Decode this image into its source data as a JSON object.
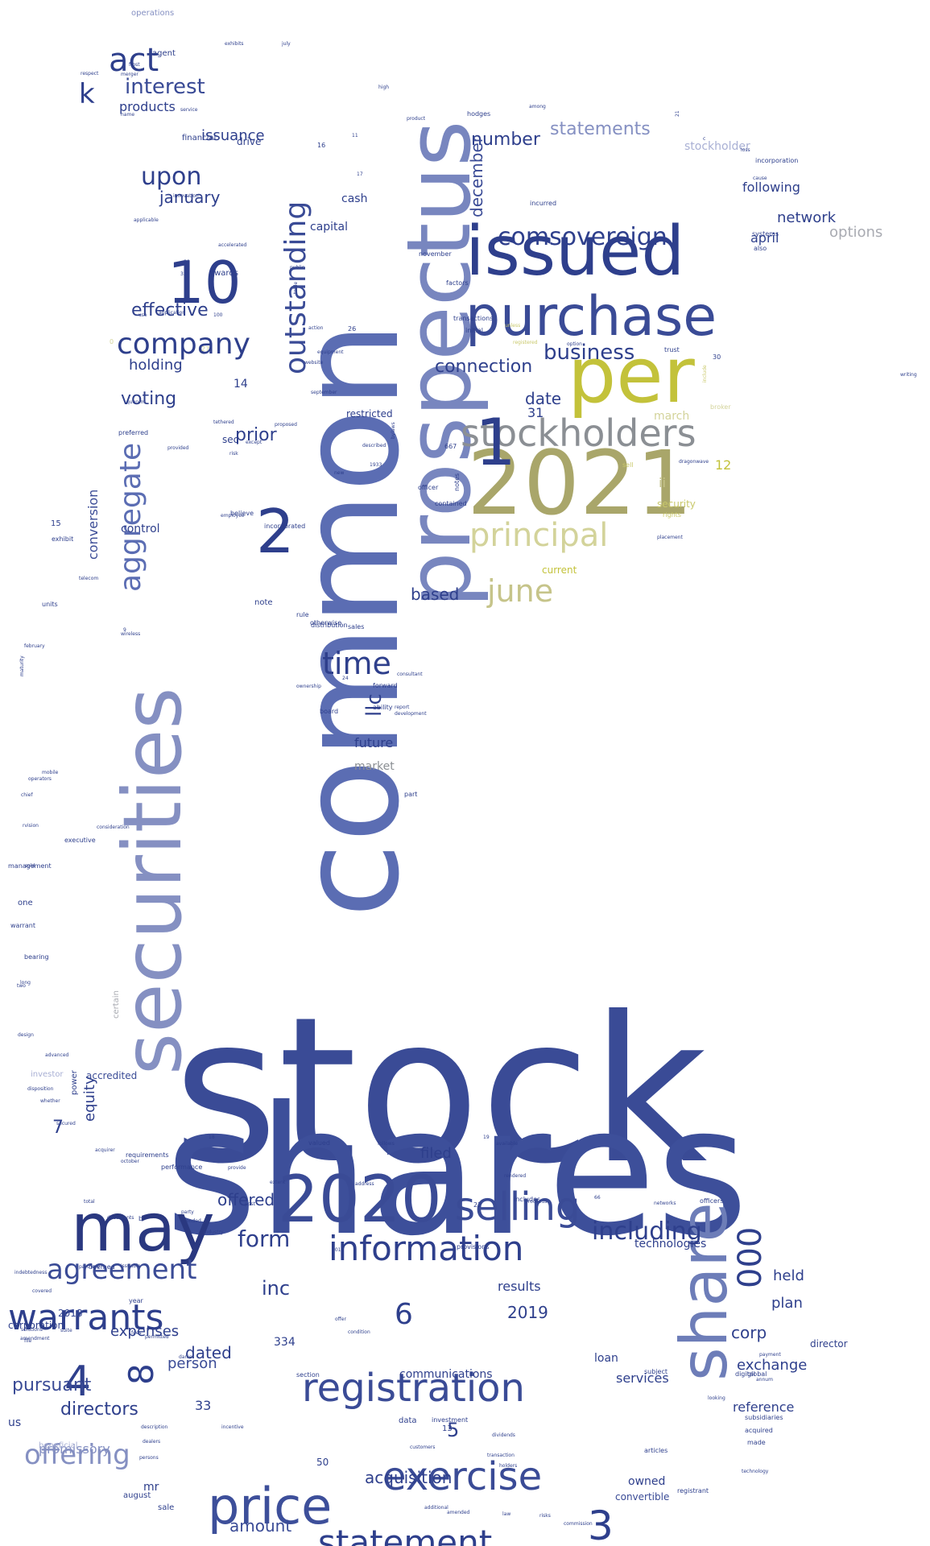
{
  "words": [
    {
      "text": "stock",
      "color": "#3a4b96"
    },
    {
      "text": "shares",
      "color": "#3d4f9a"
    },
    {
      "text": "common",
      "color": "#5b6db3"
    },
    {
      "text": "prospectus",
      "color": "#7886bf"
    },
    {
      "text": "securities",
      "color": "#8590c2"
    },
    {
      "text": "2021",
      "color": "#a9a66a"
    },
    {
      "text": "per",
      "color": "#c3c23a"
    },
    {
      "text": "issued",
      "color": "#2e3f8c"
    },
    {
      "text": "purchase",
      "color": "#3a4b96"
    },
    {
      "text": "stockholders",
      "color": "#8b8f94"
    },
    {
      "text": "principal",
      "color": "#d3d39a"
    },
    {
      "text": "june",
      "color": "#c6c48a"
    },
    {
      "text": "1",
      "color": "#2e3f8c"
    },
    {
      "text": "2",
      "color": "#2e3f8c"
    },
    {
      "text": "10",
      "color": "#2e3f8c"
    },
    {
      "text": "may",
      "color": "#2a3880"
    },
    {
      "text": "2020",
      "color": "#3a4b96"
    },
    {
      "text": "share",
      "color": "#6d7db8"
    },
    {
      "text": "price",
      "color": "#3d4f9a"
    },
    {
      "text": "registration",
      "color": "#3a4b96"
    },
    {
      "text": "exercise",
      "color": "#3a4b96"
    },
    {
      "text": "statement",
      "color": "#2e3f8c"
    },
    {
      "text": "warrants",
      "color": "#2e3f8c"
    },
    {
      "text": "selling",
      "color": "#3a4b96"
    },
    {
      "text": "information",
      "color": "#2e3f8c"
    },
    {
      "text": "agreement",
      "color": "#3a4b96"
    },
    {
      "text": "offering",
      "color": "#8590c2"
    },
    {
      "text": "outstanding",
      "color": "#3a4b96"
    },
    {
      "text": "aggregate",
      "color": "#5b6db3"
    },
    {
      "text": "company",
      "color": "#2e3f8c"
    },
    {
      "text": "comsovereign",
      "color": "#2e3f8c"
    },
    {
      "text": "time",
      "color": "#2e3f8c"
    },
    {
      "text": "upon",
      "color": "#2e3f8c"
    },
    {
      "text": "act",
      "color": "#2e3f8c"
    },
    {
      "text": "interest",
      "color": "#3a4b96"
    },
    {
      "text": "k",
      "color": "#2e3f8c"
    },
    {
      "text": "business",
      "color": "#2e3f8c"
    },
    {
      "text": "connection",
      "color": "#2e3f8c"
    },
    {
      "text": "number",
      "color": "#2e3f8c"
    },
    {
      "text": "statements",
      "color": "#8590c2"
    },
    {
      "text": "december",
      "color": "#3a4b96"
    },
    {
      "text": "effective",
      "color": "#2e3f8c"
    },
    {
      "text": "holding",
      "color": "#2e3f8c"
    },
    {
      "text": "voting",
      "color": "#2e3f8c"
    },
    {
      "text": "january",
      "color": "#2e3f8c"
    },
    {
      "text": "issuance",
      "color": "#2e3f8c"
    },
    {
      "text": "prior",
      "color": "#2e3f8c"
    },
    {
      "text": "date",
      "color": "#2e3f8c"
    },
    {
      "text": "31",
      "color": "#2e3f8c"
    },
    {
      "text": "llc",
      "color": "#2e3f8c"
    },
    {
      "text": "future",
      "color": "#2e3f8c"
    },
    {
      "text": "market",
      "color": "#8b8f94"
    },
    {
      "text": "based",
      "color": "#2e3f8c"
    },
    {
      "text": "conversion",
      "color": "#3a4b96"
    },
    {
      "text": "products",
      "color": "#2e3f8c"
    },
    {
      "text": "following",
      "color": "#2e3f8c"
    },
    {
      "text": "network",
      "color": "#2e3f8c"
    },
    {
      "text": "april",
      "color": "#2e3f8c"
    },
    {
      "text": "options",
      "color": "#a9abb2"
    },
    {
      "text": "stockholder",
      "color": "#a9b0d4"
    },
    {
      "text": "ii",
      "color": "#c6c48a"
    },
    {
      "text": "security",
      "color": "#c9c86a"
    },
    {
      "text": "12",
      "color": "#c3c23a"
    },
    {
      "text": "march",
      "color": "#d3d39a"
    },
    {
      "text": "current",
      "color": "#c3c23a"
    },
    {
      "text": "including",
      "color": "#2e3f8c"
    },
    {
      "text": "form",
      "color": "#2e3f8c"
    },
    {
      "text": "offered",
      "color": "#2e3f8c"
    },
    {
      "text": "filed",
      "color": "#2e3f8c"
    },
    {
      "text": "inc",
      "color": "#2e3f8c"
    },
    {
      "text": "6",
      "color": "#2e3f8c"
    },
    {
      "text": "4",
      "color": "#2e3f8c"
    },
    {
      "text": "8",
      "color": "#2e3f8c"
    },
    {
      "text": "3",
      "color": "#2e3f8c"
    },
    {
      "text": "5",
      "color": "#2e3f8c"
    },
    {
      "text": "7",
      "color": "#2e3f8c"
    },
    {
      "text": "000",
      "color": "#2e3f8c"
    },
    {
      "text": "held",
      "color": "#2e3f8c"
    },
    {
      "text": "plan",
      "color": "#2e3f8c"
    },
    {
      "text": "corp",
      "color": "#2e3f8c"
    },
    {
      "text": "exchange",
      "color": "#2e3f8c"
    },
    {
      "text": "reference",
      "color": "#2e3f8c"
    },
    {
      "text": "person",
      "color": "#3a4b96"
    },
    {
      "text": "dated",
      "color": "#2e3f8c"
    },
    {
      "text": "pursuant",
      "color": "#3a4b96"
    },
    {
      "text": "directors",
      "color": "#2e3f8c"
    },
    {
      "text": "promissory",
      "color": "#8590c2"
    },
    {
      "text": "amount",
      "color": "#3a4b96"
    },
    {
      "text": "acquisition",
      "color": "#2e3f8c"
    },
    {
      "text": "results",
      "color": "#2e3f8c"
    },
    {
      "text": "2019",
      "color": "#2e3f8c"
    },
    {
      "text": "technologies",
      "color": "#2e3f8c"
    },
    {
      "text": "communications",
      "color": "#2e3f8c"
    },
    {
      "text": "services",
      "color": "#2e3f8c"
    },
    {
      "text": "loan",
      "color": "#2e3f8c"
    },
    {
      "text": "director",
      "color": "#2e3f8c"
    },
    {
      "text": "owned",
      "color": "#2e3f8c"
    },
    {
      "text": "convertible",
      "color": "#3a4b96"
    },
    {
      "text": "equity",
      "color": "#2e3f8c"
    },
    {
      "text": "power",
      "color": "#2e3f8c"
    },
    {
      "text": "accredited",
      "color": "#3a4b96"
    },
    {
      "text": "2018",
      "color": "#3a4b96"
    },
    {
      "text": "corporation",
      "color": "#2e3f8c"
    },
    {
      "text": "expenses",
      "color": "#2e3f8c"
    },
    {
      "text": "us",
      "color": "#2e3f8c"
    },
    {
      "text": "mr",
      "color": "#2e3f8c"
    },
    {
      "text": "33",
      "color": "#2e3f8c"
    },
    {
      "text": "334",
      "color": "#2e3f8c"
    },
    {
      "text": "50",
      "color": "#2e3f8c"
    },
    {
      "text": "sale",
      "color": "#2e3f8c"
    },
    {
      "text": "august",
      "color": "#2e3f8c"
    },
    {
      "text": "beneficial",
      "color": "#a9b0d4"
    },
    {
      "text": "operations",
      "color": "#8590c2"
    },
    {
      "text": "agent",
      "color": "#2e3f8c"
    },
    {
      "text": "drive",
      "color": "#2e3f8c"
    },
    {
      "text": "financial",
      "color": "#2e3f8c"
    },
    {
      "text": "awards",
      "color": "#2e3f8c"
    },
    {
      "text": "capital",
      "color": "#2e3f8c"
    },
    {
      "text": "cash",
      "color": "#2e3f8c"
    },
    {
      "text": "14",
      "color": "#2e3f8c"
    },
    {
      "text": "sec",
      "color": "#2e3f8c"
    },
    {
      "text": "restricted",
      "color": "#2e3f8c"
    },
    {
      "text": "note",
      "color": "#2e3f8c"
    },
    {
      "text": "control",
      "color": "#2e3f8c"
    },
    {
      "text": "15",
      "color": "#2e3f8c"
    },
    {
      "text": "part",
      "color": "#2e3f8c"
    },
    {
      "text": "certain",
      "color": "#a9abb2"
    },
    {
      "text": "investor",
      "color": "#a9b0d4"
    },
    {
      "text": "one",
      "color": "#2e3f8c"
    },
    {
      "text": "executive",
      "color": "#2e3f8c"
    },
    {
      "text": "management",
      "color": "#2e3f8c"
    },
    {
      "text": "warrant",
      "color": "#2e3f8c"
    },
    {
      "text": "bearing",
      "color": "#2e3f8c"
    },
    {
      "text": "units",
      "color": "#2e3f8c"
    },
    {
      "text": "believe",
      "color": "#2e3f8c"
    },
    {
      "text": "incorporated",
      "color": "#2e3f8c"
    },
    {
      "text": "distribution",
      "color": "#2e3f8c"
    },
    {
      "text": "sales",
      "color": "#2e3f8c"
    },
    {
      "text": "forward",
      "color": "#2e3f8c"
    },
    {
      "text": "ability",
      "color": "#2e3f8c"
    },
    {
      "text": "board",
      "color": "#2e3f8c"
    },
    {
      "text": "rule",
      "color": "#2e3f8c"
    },
    {
      "text": "otherwise",
      "color": "#2e3f8c"
    },
    {
      "text": "contained",
      "color": "#2e3f8c"
    },
    {
      "text": "notes",
      "color": "#2e3f8c"
    },
    {
      "text": "officer",
      "color": "#2e3f8c"
    },
    {
      "text": "667",
      "color": "#2e3f8c"
    },
    {
      "text": "26",
      "color": "#2e3f8c"
    },
    {
      "text": "initial",
      "color": "#2e3f8c"
    },
    {
      "text": "16",
      "color": "#2e3f8c"
    },
    {
      "text": "hodges",
      "color": "#2e3f8c"
    },
    {
      "text": "transactions",
      "color": "#2e3f8c"
    },
    {
      "text": "factors",
      "color": "#2e3f8c"
    },
    {
      "text": "incurred",
      "color": "#2e3f8c"
    },
    {
      "text": "incorporation",
      "color": "#2e3f8c"
    },
    {
      "text": "also",
      "color": "#2e3f8c"
    },
    {
      "text": "systems",
      "color": "#2e3f8c"
    },
    {
      "text": "trust",
      "color": "#2e3f8c"
    },
    {
      "text": "30",
      "color": "#2e3f8c"
    },
    {
      "text": "broker",
      "color": "#d3d39a"
    },
    {
      "text": "sell",
      "color": "#c9c86a"
    },
    {
      "text": "rights",
      "color": "#c9c86a"
    },
    {
      "text": "27",
      "color": "#d3d39a"
    },
    {
      "text": "0",
      "color": "#d3d39a"
    },
    {
      "text": "respect",
      "color": "#2e3f8c"
    },
    {
      "text": "name",
      "color": "#2e3f8c"
    },
    {
      "text": "high",
      "color": "#2e3f8c"
    },
    {
      "text": "july",
      "color": "#2e3f8c"
    },
    {
      "text": "table",
      "color": "#2e3f8c"
    },
    {
      "text": "public",
      "color": "#2e3f8c"
    },
    {
      "text": "november",
      "color": "#2e3f8c"
    },
    {
      "text": "risk",
      "color": "#2e3f8c"
    },
    {
      "text": "exhibit",
      "color": "#2e3f8c"
    },
    {
      "text": "provided",
      "color": "#2e3f8c"
    },
    {
      "text": "valued",
      "color": "#2e3f8c"
    },
    {
      "text": "requirements",
      "color": "#2e3f8c"
    },
    {
      "text": "performance",
      "color": "#2e3f8c"
    },
    {
      "text": "provide",
      "color": "#2e3f8c"
    },
    {
      "text": "post",
      "color": "#2e3f8c"
    },
    {
      "text": "total",
      "color": "#2e3f8c"
    },
    {
      "text": "documents",
      "color": "#2e3f8c"
    },
    {
      "text": "ended",
      "color": "#2e3f8c"
    },
    {
      "text": "industry",
      "color": "#2e3f8c"
    },
    {
      "text": "deemed",
      "color": "#2e3f8c"
    },
    {
      "text": "issuable",
      "color": "#2e3f8c"
    },
    {
      "text": "year",
      "color": "#2e3f8c"
    },
    {
      "text": "solutions",
      "color": "#2e3f8c"
    },
    {
      "text": "amendment",
      "color": "#2e3f8c"
    },
    {
      "text": "includes",
      "color": "#2e3f8c"
    },
    {
      "text": "provisions",
      "color": "#2e3f8c"
    },
    {
      "text": "section",
      "color": "#2e3f8c"
    },
    {
      "text": "holders",
      "color": "#2e3f8c"
    },
    {
      "text": "additional",
      "color": "#2e3f8c"
    },
    {
      "text": "amended",
      "color": "#2e3f8c"
    },
    {
      "text": "law",
      "color": "#2e3f8c"
    },
    {
      "text": "risks",
      "color": "#2e3f8c"
    },
    {
      "text": "commission",
      "color": "#2e3f8c"
    },
    {
      "text": "registrant",
      "color": "#2e3f8c"
    },
    {
      "text": "articles",
      "color": "#2e3f8c"
    },
    {
      "text": "subject",
      "color": "#2e3f8c"
    },
    {
      "text": "digital",
      "color": "#2e3f8c"
    },
    {
      "text": "global",
      "color": "#2e3f8c"
    },
    {
      "text": "subsidiaries",
      "color": "#2e3f8c"
    },
    {
      "text": "acquired",
      "color": "#2e3f8c"
    },
    {
      "text": "made",
      "color": "#2e3f8c"
    },
    {
      "text": "looking",
      "color": "#2e3f8c"
    },
    {
      "text": "officers",
      "color": "#2e3f8c"
    },
    {
      "text": "networks",
      "color": "#2e3f8c"
    },
    {
      "text": "proceeds",
      "color": "#2e3f8c"
    },
    {
      "text": "13",
      "color": "#2e3f8c"
    },
    {
      "text": "data",
      "color": "#2e3f8c"
    },
    {
      "text": "investment",
      "color": "#2e3f8c"
    },
    {
      "text": "b",
      "color": "#2e3f8c"
    },
    {
      "text": "9",
      "color": "#2e3f8c"
    },
    {
      "text": "c",
      "color": "#2e3f8c"
    },
    {
      "text": "11",
      "color": "#2e3f8c"
    },
    {
      "text": "17",
      "color": "#2e3f8c"
    },
    {
      "text": "100",
      "color": "#2e3f8c"
    },
    {
      "text": "application",
      "color": "#2e3f8c"
    },
    {
      "text": "use",
      "color": "#2e3f8c"
    },
    {
      "text": "applicable",
      "color": "#2e3f8c"
    },
    {
      "text": "innovation",
      "color": "#2e3f8c"
    },
    {
      "text": "frost",
      "color": "#2e3f8c"
    },
    {
      "text": "merger",
      "color": "#2e3f8c"
    },
    {
      "text": "service",
      "color": "#2e3f8c"
    },
    {
      "text": "quorum",
      "color": "#2e3f8c"
    },
    {
      "text": "preferred",
      "color": "#2e3f8c"
    },
    {
      "text": "described",
      "color": "#2e3f8c"
    },
    {
      "text": "1933",
      "color": "#2e3f8c"
    },
    {
      "text": "bylaws",
      "color": "#2e3f8c"
    },
    {
      "text": "24",
      "color": "#2e3f8c"
    },
    {
      "text": "consultant",
      "color": "#2e3f8c"
    },
    {
      "text": "report",
      "color": "#2e3f8c"
    },
    {
      "text": "development",
      "color": "#2e3f8c"
    },
    {
      "text": "ownership",
      "color": "#2e3f8c"
    },
    {
      "text": "wireless",
      "color": "#2e3f8c"
    },
    {
      "text": "telecom",
      "color": "#2e3f8c"
    },
    {
      "text": "mobile",
      "color": "#2e3f8c"
    },
    {
      "text": "operators",
      "color": "#2e3f8c"
    },
    {
      "text": "chief",
      "color": "#2e3f8c"
    },
    {
      "text": "consideration",
      "color": "#2e3f8c"
    },
    {
      "text": "rvision",
      "color": "#2e3f8c"
    },
    {
      "text": "sold",
      "color": "#2e3f8c"
    },
    {
      "text": "long",
      "color": "#2e3f8c"
    },
    {
      "text": "two",
      "color": "#2e3f8c"
    },
    {
      "text": "design",
      "color": "#2e3f8c"
    },
    {
      "text": "advanced",
      "color": "#2e3f8c"
    },
    {
      "text": "disposition",
      "color": "#2e3f8c"
    },
    {
      "text": "whether",
      "color": "#2e3f8c"
    },
    {
      "text": "secured",
      "color": "#2e3f8c"
    },
    {
      "text": "partners",
      "color": "#2e3f8c"
    },
    {
      "text": "indebtedness",
      "color": "#2e3f8c"
    },
    {
      "text": "covered",
      "color": "#2e3f8c"
    },
    {
      "text": "suite",
      "color": "#2e3f8c"
    },
    {
      "text": "file",
      "color": "#2e3f8c"
    },
    {
      "text": "permitted",
      "color": "#2e3f8c"
    },
    {
      "text": "description",
      "color": "#2e3f8c"
    },
    {
      "text": "dealers",
      "color": "#2e3f8c"
    },
    {
      "text": "persons",
      "color": "#2e3f8c"
    },
    {
      "text": "incentive",
      "color": "#2e3f8c"
    },
    {
      "text": "offer",
      "color": "#2e3f8c"
    },
    {
      "text": "condition",
      "color": "#2e3f8c"
    },
    {
      "text": "available",
      "color": "#2e3f8c"
    },
    {
      "text": "rendered",
      "color": "#2e3f8c"
    },
    {
      "text": "dividends",
      "color": "#2e3f8c"
    },
    {
      "text": "transaction",
      "color": "#2e3f8c"
    },
    {
      "text": "customers",
      "color": "#2e3f8c"
    },
    {
      "text": "technology",
      "color": "#2e3f8c"
    },
    {
      "text": "payment",
      "color": "#2e3f8c"
    },
    {
      "text": "annum",
      "color": "#2e3f8c"
    },
    {
      "text": "address",
      "color": "#2e3f8c"
    },
    {
      "text": "follows",
      "color": "#2e3f8c"
    },
    {
      "text": "extent",
      "color": "#2e3f8c"
    },
    {
      "text": "2015",
      "color": "#2e3f8c"
    },
    {
      "text": "18",
      "color": "#2e3f8c"
    },
    {
      "text": "22",
      "color": "#2e3f8c"
    },
    {
      "text": "66",
      "color": "#2e3f8c"
    },
    {
      "text": "00",
      "color": "#2e3f8c"
    },
    {
      "text": "333",
      "color": "#2e3f8c"
    },
    {
      "text": "19",
      "color": "#2e3f8c"
    },
    {
      "text": "21",
      "color": "#2e3f8c"
    },
    {
      "text": "loss",
      "color": "#2e3f8c"
    },
    {
      "text": "cause",
      "color": "#2e3f8c"
    },
    {
      "text": "among",
      "color": "#2e3f8c"
    },
    {
      "text": "product",
      "color": "#2e3f8c"
    },
    {
      "text": "dragonwave",
      "color": "#2e3f8c"
    },
    {
      "text": "placement",
      "color": "#2e3f8c"
    },
    {
      "text": "include",
      "color": "#c9c86a"
    },
    {
      "text": "unless",
      "color": "#c9c86a"
    },
    {
      "text": "registered",
      "color": "#c9c86a"
    },
    {
      "text": "option",
      "color": "#2e3f8c"
    },
    {
      "text": "action",
      "color": "#2e3f8c"
    },
    {
      "text": "equipment",
      "color": "#2e3f8c"
    },
    {
      "text": "website",
      "color": "#2e3f8c"
    },
    {
      "text": "september",
      "color": "#2e3f8c"
    },
    {
      "text": "proposed",
      "color": "#2e3f8c"
    },
    {
      "text": "february",
      "color": "#2e3f8c"
    },
    {
      "text": "maturity",
      "color": "#2e3f8c"
    },
    {
      "text": "tethered",
      "color": "#2e3f8c"
    },
    {
      "text": "accelerated",
      "color": "#2e3f8c"
    },
    {
      "text": "exhibits",
      "color": "#2e3f8c"
    },
    {
      "text": "employee",
      "color": "#2e3f8c"
    },
    {
      "text": "except",
      "color": "#2e3f8c"
    },
    {
      "text": "new",
      "color": "#2e3f8c"
    },
    {
      "text": "acquirer",
      "color": "#2e3f8c"
    },
    {
      "text": "october",
      "color": "#2e3f8c"
    },
    {
      "text": "party",
      "color": "#2e3f8c"
    },
    {
      "text": "writing",
      "color": "#2e3f8c"
    },
    {
      "text": "fees",
      "color": "#2e3f8c"
    },
    {
      "text": "daniel",
      "color": "#2e3f8c"
    },
    {
      "text": "nrs",
      "color": "#2e3f8c"
    },
    {
      "text": "issue",
      "color": "#2e3f8c"
    },
    {
      "text": "virtual",
      "color": "#2e3f8c"
    }
  ]
}
